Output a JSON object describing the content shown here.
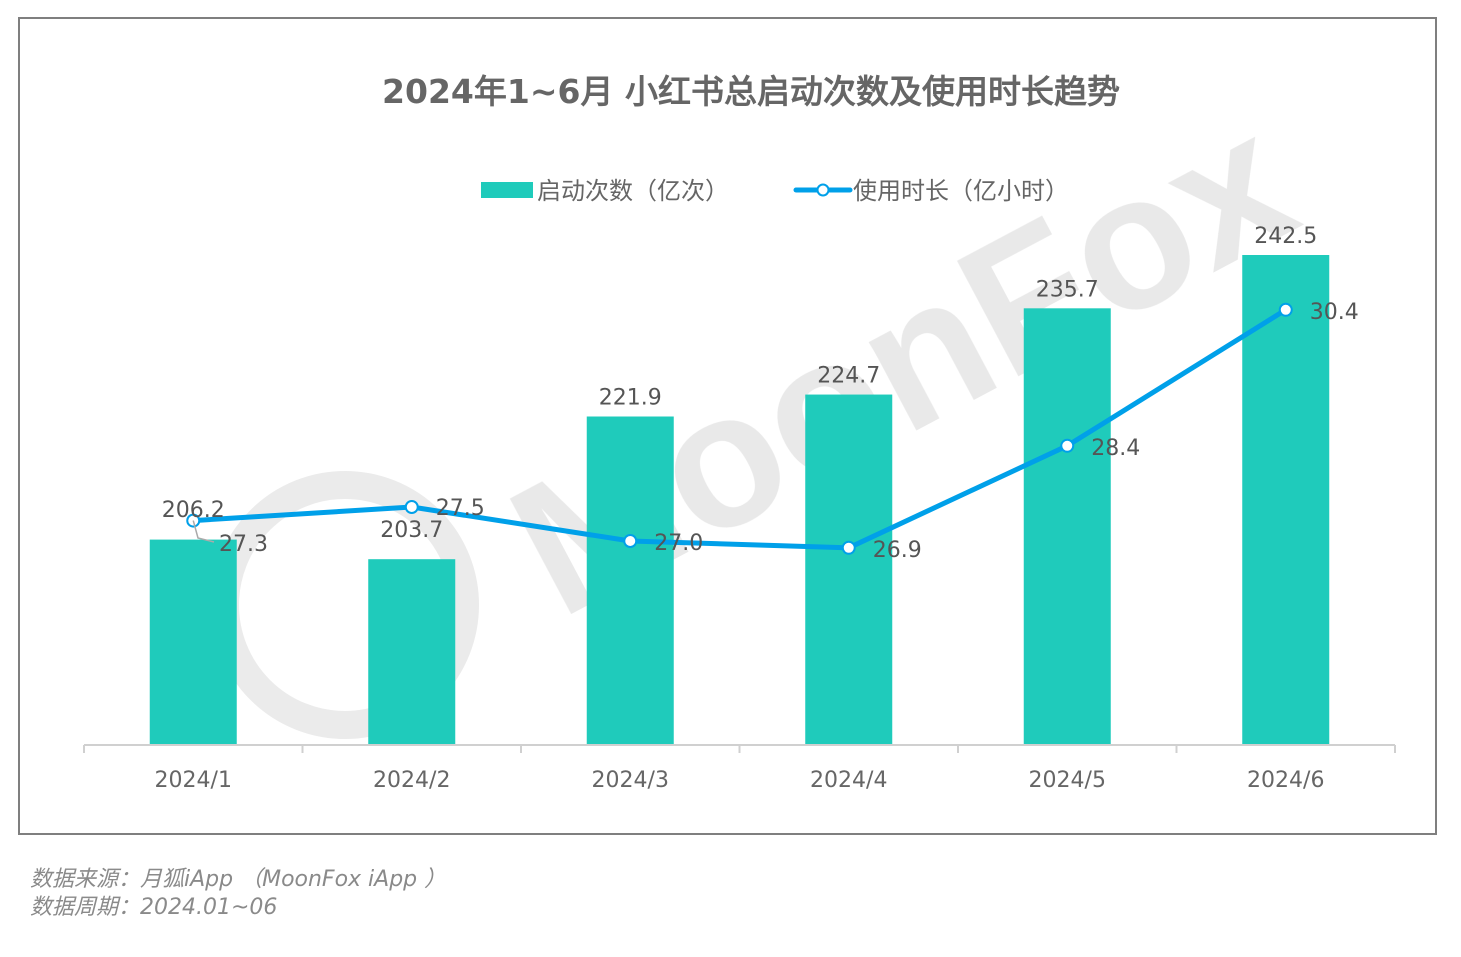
{
  "chart_data": {
    "type": "bar+line",
    "title": "2024年1~6月 小红书总启动次数及使用时长趋势",
    "categories": [
      "2024/1",
      "2024/2",
      "2024/3",
      "2024/4",
      "2024/5",
      "2024/6"
    ],
    "series": [
      {
        "name": "启动次数（亿次）",
        "type": "bar",
        "axis": "left",
        "color": "#1fcbbb",
        "values": [
          206.2,
          203.7,
          221.9,
          224.7,
          235.7,
          242.5
        ]
      },
      {
        "name": "使用时长（亿小时）",
        "type": "line",
        "axis": "right",
        "color": "#00a0e9",
        "values": [
          27.3,
          27.5,
          27.0,
          26.9,
          28.4,
          30.4
        ]
      }
    ],
    "ylim_left": [
      180,
      250
    ],
    "ylim_right": [
      24,
      31
    ],
    "grid": false,
    "legend_position": "top-center",
    "axis_labels_shown": false
  },
  "watermark": "MoonFox",
  "footer": {
    "source": "数据来源：月狐iApp （MoonFox iApp ）",
    "period": "数据周期：2024.01~06"
  }
}
